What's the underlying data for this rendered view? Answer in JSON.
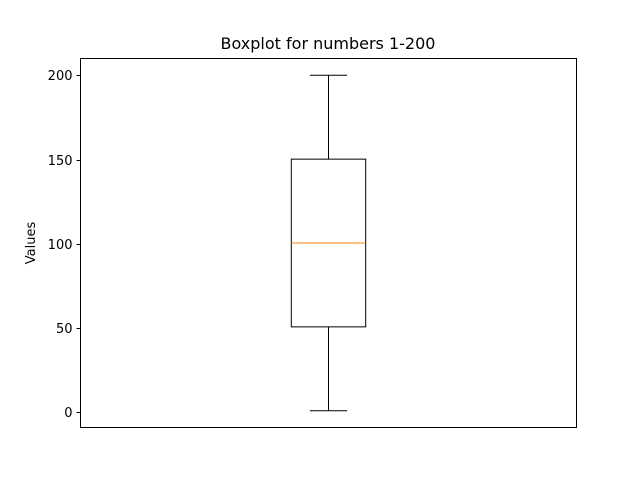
{
  "chart_data": {
    "type": "boxplot",
    "title": "Boxplot for numbers 1-200",
    "xlabel": "",
    "ylabel": "Values",
    "ylim": [
      -8.95,
      209.95
    ],
    "yticks": [
      0,
      50,
      100,
      150,
      200
    ],
    "grid": false,
    "legend": "none",
    "boxes": [
      {
        "whisker_low": 1,
        "q1": 50.75,
        "median": 100.5,
        "q3": 150.25,
        "whisker_high": 200
      }
    ],
    "colors": {
      "box": "#000000",
      "median": "#ff7f0e"
    }
  }
}
